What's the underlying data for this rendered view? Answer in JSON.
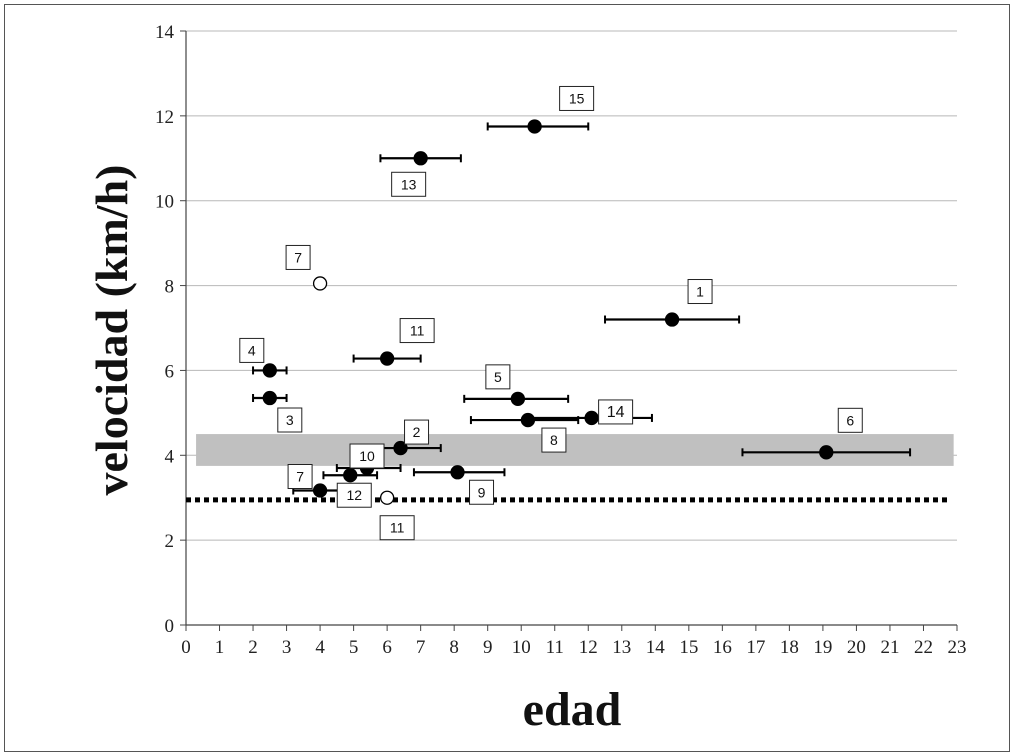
{
  "chart_data": {
    "type": "scatter",
    "xlabel": "edad",
    "ylabel": "velocidad (km/h)",
    "xlim": [
      0,
      23
    ],
    "ylim": [
      0,
      14
    ],
    "x_ticks": [
      0,
      1,
      2,
      3,
      4,
      5,
      6,
      7,
      8,
      9,
      10,
      11,
      12,
      13,
      14,
      15,
      16,
      17,
      18,
      19,
      20,
      21,
      22,
      23
    ],
    "y_ticks": [
      0,
      2,
      4,
      6,
      8,
      10,
      12,
      14
    ],
    "grid": "horizontal",
    "band": {
      "y_min": 3.75,
      "y_max": 4.5,
      "x_min": 0.3,
      "x_max": 22.9,
      "color": "#c0c0c0"
    },
    "reference_line": {
      "y": 2.95,
      "style": "dotted",
      "color": "#000000"
    },
    "points": [
      {
        "label": "15",
        "x": 10.4,
        "y": 11.75,
        "xerr": [
          9.0,
          12.0
        ],
        "filled": true
      },
      {
        "label": "13",
        "x": 7.0,
        "y": 11.0,
        "xerr": [
          5.8,
          8.2
        ],
        "filled": true
      },
      {
        "label": "7",
        "x": 4.0,
        "y": 8.05,
        "xerr": null,
        "filled": false
      },
      {
        "label": "1",
        "x": 14.5,
        "y": 7.2,
        "xerr": [
          12.5,
          16.5
        ],
        "filled": true
      },
      {
        "label": "11",
        "x": 6.0,
        "y": 6.28,
        "xerr": [
          5.0,
          7.0
        ],
        "filled": true
      },
      {
        "label": "4",
        "x": 2.5,
        "y": 6.0,
        "xerr": [
          2.0,
          3.0
        ],
        "filled": true
      },
      {
        "label": "3",
        "x": 2.5,
        "y": 5.35,
        "xerr": [
          2.0,
          3.0
        ],
        "filled": true
      },
      {
        "label": "5",
        "x": 9.9,
        "y": 5.33,
        "xerr": [
          8.3,
          11.4
        ],
        "filled": true
      },
      {
        "label": "14",
        "x": 12.1,
        "y": 4.88,
        "xerr": [
          10.2,
          13.9
        ],
        "filled": true
      },
      {
        "label": "8",
        "x": 10.2,
        "y": 4.83,
        "xerr": [
          8.5,
          11.7
        ],
        "filled": true
      },
      {
        "label": "2",
        "x": 6.4,
        "y": 4.17,
        "xerr": [
          5.3,
          7.6
        ],
        "filled": true
      },
      {
        "label": "6",
        "x": 19.1,
        "y": 4.07,
        "xerr": [
          16.6,
          21.6
        ],
        "filled": true
      },
      {
        "label": "10",
        "x": 5.4,
        "y": 3.7,
        "xerr": [
          4.5,
          6.4
        ],
        "filled": true
      },
      {
        "label": "9",
        "x": 8.1,
        "y": 3.6,
        "xerr": [
          6.8,
          9.5
        ],
        "filled": true
      },
      {
        "label": "12",
        "x": 4.9,
        "y": 3.53,
        "xerr": [
          4.1,
          5.7
        ],
        "filled": true
      },
      {
        "label": "7",
        "x": 4.0,
        "y": 3.17,
        "xerr": [
          3.2,
          4.8
        ],
        "filled": true
      },
      {
        "label": "11",
        "x": 6.0,
        "y": 3.0,
        "xerr": null,
        "filled": false
      }
    ]
  }
}
